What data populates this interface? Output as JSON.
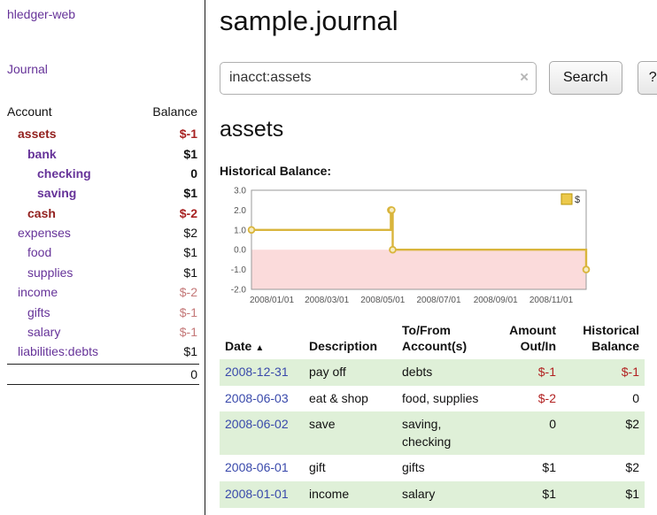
{
  "app": {
    "title": "hledger-web",
    "nav_journal": "Journal"
  },
  "sidebar": {
    "header": {
      "account": "Account",
      "balance": "Balance"
    },
    "accounts": [
      {
        "name": "assets",
        "balance": "$-1",
        "depth": 0,
        "bold": true,
        "red_name": true,
        "negative": true
      },
      {
        "name": "bank",
        "balance": "$1",
        "depth": 1,
        "bold": true,
        "red_name": false,
        "negative": false
      },
      {
        "name": "checking",
        "balance": "0",
        "depth": 2,
        "bold": true,
        "red_name": false,
        "negative": false
      },
      {
        "name": "saving",
        "balance": "$1",
        "depth": 2,
        "bold": true,
        "red_name": false,
        "negative": false
      },
      {
        "name": "cash",
        "balance": "$-2",
        "depth": 1,
        "bold": true,
        "red_name": true,
        "negative": true
      },
      {
        "name": "expenses",
        "balance": "$2",
        "depth": 0,
        "bold": false,
        "red_name": false,
        "negative": false
      },
      {
        "name": "food",
        "balance": "$1",
        "depth": 1,
        "bold": false,
        "red_name": false,
        "negative": false
      },
      {
        "name": "supplies",
        "balance": "$1",
        "depth": 1,
        "bold": false,
        "red_name": false,
        "negative": false
      },
      {
        "name": "income",
        "balance": "$-2",
        "depth": 0,
        "bold": false,
        "red_name": false,
        "negative": true
      },
      {
        "name": "gifts",
        "balance": "$-1",
        "depth": 1,
        "bold": false,
        "red_name": false,
        "negative": true
      },
      {
        "name": "salary",
        "balance": "$-1",
        "depth": 1,
        "bold": false,
        "red_name": false,
        "negative": true
      },
      {
        "name": "liabilities:debts",
        "balance": "$1",
        "depth": 0,
        "bold": false,
        "red_name": false,
        "negative": false
      }
    ],
    "total": "0"
  },
  "main": {
    "title": "sample.journal",
    "search": {
      "value": "inacct:assets",
      "clear_icon": "×",
      "button_label": "Search",
      "help_label": "?"
    },
    "account_heading": "assets",
    "chart_label": "Historical Balance:",
    "table": {
      "headers": [
        {
          "label": "Date",
          "align": "left",
          "sortable": true,
          "sort_icon": "▲"
        },
        {
          "label": "Description",
          "align": "left"
        },
        {
          "label": "To/From Account(s)",
          "align": "left"
        },
        {
          "label": "Amount Out/In",
          "align": "right"
        },
        {
          "label": "Historical Balance",
          "align": "right"
        }
      ],
      "rows": [
        {
          "date": "2008-12-31",
          "description": "pay off",
          "accounts": "debts",
          "amount": "$-1",
          "amount_negative": true,
          "balance": "$-1",
          "balance_negative": true
        },
        {
          "date": "2008-06-03",
          "description": "eat & shop",
          "accounts": "food, supplies",
          "amount": "$-2",
          "amount_negative": true,
          "balance": "0",
          "balance_negative": false
        },
        {
          "date": "2008-06-02",
          "description": "save",
          "accounts": "saving, checking",
          "amount": "0",
          "amount_negative": false,
          "balance": "$2",
          "balance_negative": false
        },
        {
          "date": "2008-06-01",
          "description": "gift",
          "accounts": "gifts",
          "amount": "$1",
          "amount_negative": false,
          "balance": "$2",
          "balance_negative": false
        },
        {
          "date": "2008-01-01",
          "description": "income",
          "accounts": "salary",
          "amount": "$1",
          "amount_negative": false,
          "balance": "$1",
          "balance_negative": false
        }
      ]
    }
  },
  "chart_data": {
    "type": "line",
    "title": "Historical Balance",
    "series_name": "$",
    "step": true,
    "points": [
      {
        "date": "2008-01-01",
        "value": 1
      },
      {
        "date": "2008-06-01",
        "value": 2
      },
      {
        "date": "2008-06-02",
        "value": 2
      },
      {
        "date": "2008-06-03",
        "value": 0
      },
      {
        "date": "2008-12-31",
        "value": -1
      }
    ],
    "xrange": [
      "2008-01-01",
      "2008-12-31"
    ],
    "xticks": [
      "2008-01-01",
      "2008-03-01",
      "2008-05-01",
      "2008-07-01",
      "2008-09-01",
      "2008-11-01"
    ],
    "ylim": [
      -2.0,
      3.0
    ],
    "yticks": [
      3.0,
      2.0,
      1.0,
      0.0,
      -1.0,
      -2.0
    ],
    "grid": false,
    "legend_position": "top-right",
    "line_color": "#d9b53c",
    "marker_fill": "#f6ecc2",
    "negative_region_color": "#fbdbdb"
  },
  "colors": {
    "link_purple": "#663399",
    "account_red": "#93211f",
    "negative_red": "#a82222",
    "date_blue": "#3949ab",
    "row_green": "#dff0d8"
  }
}
